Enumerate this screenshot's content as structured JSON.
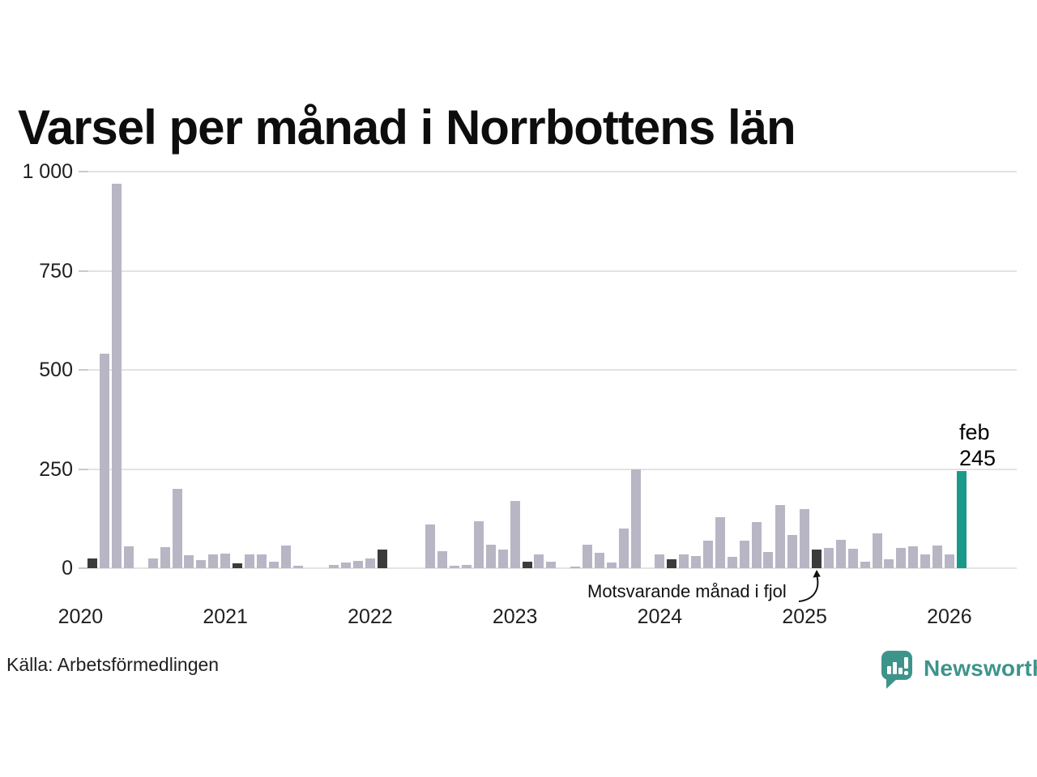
{
  "title": "Varsel per månad i Norrbottens län",
  "source": "Källa: Arbetsförmedlingen",
  "branding": {
    "name": "Newsworthy",
    "color": "#3d948b"
  },
  "annotation": {
    "text": "Motsvarande månad i fjol",
    "target": "2025-02"
  },
  "highlight_label": {
    "line1": "feb",
    "line2": "245"
  },
  "colors": {
    "bar": "#b8b6c4",
    "bar_dark": "#3b3b3b",
    "bar_highlight": "#1a998b",
    "grid": "#e3e3e3",
    "text": "#1f1f1f"
  },
  "chart_data": {
    "type": "bar",
    "title": "Varsel per månad i Norrbottens län",
    "xlabel": "",
    "ylabel": "",
    "ylim": [
      0,
      1000
    ],
    "grid": true,
    "legend": false,
    "y_ticks": [
      0,
      250,
      500,
      750,
      1000
    ],
    "y_tick_labels": [
      "0",
      "250",
      "500",
      "750",
      "1 000"
    ],
    "x_tick_labels": [
      "2020",
      "2021",
      "2022",
      "2023",
      "2024",
      "2025",
      "2026"
    ],
    "month_roles": {
      "february": "dark",
      "2026-02": "highlight"
    },
    "highlight": {
      "month": "2026-02",
      "month_label": "feb",
      "value": 245
    },
    "series": [
      {
        "year": 2020,
        "values": [
          0,
          24,
          540,
          970,
          55,
          0,
          25,
          54,
          200,
          33,
          20,
          34
        ]
      },
      {
        "year": 2021,
        "values": [
          37,
          12,
          34,
          34,
          17,
          58,
          7,
          0,
          0,
          8,
          14,
          19
        ]
      },
      {
        "year": 2022,
        "values": [
          24,
          46,
          0,
          0,
          0,
          110,
          42,
          6,
          9,
          118,
          60,
          47
        ]
      },
      {
        "year": 2023,
        "values": [
          170,
          17,
          34,
          16,
          0,
          4,
          60,
          38,
          14,
          100,
          250,
          0
        ]
      },
      {
        "year": 2024,
        "values": [
          34,
          22,
          35,
          31,
          70,
          128,
          28,
          70,
          117,
          40,
          160,
          84
        ]
      },
      {
        "year": 2025,
        "values": [
          150,
          46,
          52,
          72,
          49,
          16,
          87,
          23,
          52,
          55,
          35,
          58
        ]
      },
      {
        "year": 2026,
        "values": [
          35,
          245
        ]
      }
    ]
  }
}
